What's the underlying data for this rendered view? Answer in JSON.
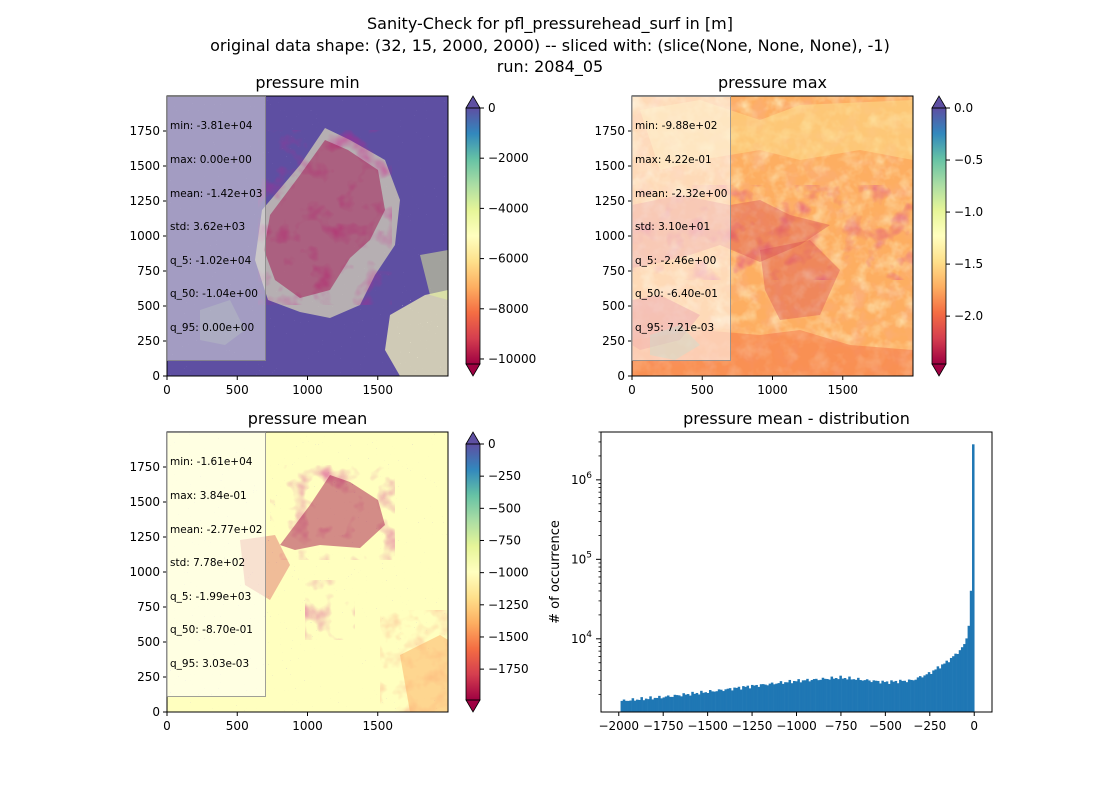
{
  "figure": {
    "title_lines": [
      "Sanity-Check for pfl_pressurehead_surf in [m]",
      "original data shape: (32, 15, 2000, 2000) -- sliced with: (slice(None, None, None), -1)",
      "run: 2084_05"
    ]
  },
  "chart_data": [
    {
      "type": "heatmap",
      "title": "pressure min",
      "xlim": [
        0,
        2000
      ],
      "ylim": [
        0,
        2000
      ],
      "xticks": [
        0,
        500,
        1000,
        1500
      ],
      "yticks": [
        0,
        250,
        500,
        750,
        1000,
        1250,
        1500,
        1750
      ],
      "colormap": "Spectral",
      "colorbar": {
        "ticks": [
          0,
          -2000,
          -4000,
          -6000,
          -8000,
          -10000
        ],
        "range": [
          -10200,
          0
        ],
        "extend": "both"
      },
      "stats": [
        "min: -3.81e+04",
        "max: 0.00e+00",
        "mean: -1.42e+03",
        "std: 3.62e+03",
        "q_5: -1.02e+04",
        "q_50: -1.04e+00",
        "q_95: 0.00e+00"
      ]
    },
    {
      "type": "heatmap",
      "title": "pressure max",
      "xlim": [
        0,
        2000
      ],
      "ylim": [
        0,
        2000
      ],
      "xticks": [
        0,
        500,
        1000,
        1500
      ],
      "yticks": [
        0,
        250,
        500,
        750,
        1000,
        1250,
        1500,
        1750
      ],
      "colormap": "Spectral",
      "colorbar": {
        "ticks": [
          0.0,
          -0.5,
          -1.0,
          -1.5,
          -2.0
        ],
        "tick_labels": [
          "0.0",
          "−0.5",
          "−1.0",
          "−1.5",
          "−2.0"
        ],
        "range": [
          -2.46,
          0.0
        ],
        "extend": "both"
      },
      "stats": [
        "min: -9.88e+02",
        "max: 4.22e-01",
        "mean: -2.32e+00",
        "std: 3.10e+01",
        "q_5: -2.46e+00",
        "q_50: -6.40e-01",
        "q_95: 7.21e-03"
      ]
    },
    {
      "type": "heatmap",
      "title": "pressure mean",
      "xlim": [
        0,
        2000
      ],
      "ylim": [
        0,
        2000
      ],
      "xticks": [
        0,
        500,
        1000,
        1500
      ],
      "yticks": [
        0,
        250,
        500,
        750,
        1000,
        1250,
        1500,
        1750
      ],
      "colormap": "Spectral",
      "colorbar": {
        "ticks": [
          0,
          -250,
          -500,
          -750,
          -1000,
          -1250,
          -1500,
          -1750
        ],
        "range": [
          -1990,
          0
        ],
        "extend": "both"
      },
      "stats": [
        "min: -1.61e+04",
        "max: 3.84e-01",
        "mean: -2.77e+02",
        "std: 7.78e+02",
        "q_5: -1.99e+03",
        "q_50: -8.70e-01",
        "q_95: 3.03e-03"
      ]
    },
    {
      "type": "bar",
      "title": "pressure mean - distribution",
      "ylabel": "# of occurrence",
      "xlabel": "",
      "yscale": "log",
      "xlim": [
        -2100,
        100
      ],
      "xticks": [
        -2000,
        -1750,
        -1500,
        -1250,
        -1000,
        -750,
        -500,
        -250,
        0
      ],
      "ylim": [
        1200,
        4000000
      ],
      "yticks": [
        10000,
        100000,
        1000000
      ],
      "bar_color": "#1f77b4",
      "bins": {
        "start": -1990,
        "end": 0,
        "count": 160
      },
      "anchors": [
        [
          -1990,
          1650
        ],
        [
          -1750,
          1850
        ],
        [
          -1500,
          2150
        ],
        [
          -1250,
          2550
        ],
        [
          -1000,
          2950
        ],
        [
          -750,
          3250
        ],
        [
          -500,
          2850
        ],
        [
          -350,
          3000
        ],
        [
          -250,
          3700
        ],
        [
          -150,
          5200
        ],
        [
          -100,
          6500
        ],
        [
          -60,
          8000
        ],
        [
          -40,
          11000
        ],
        [
          -25,
          18000
        ],
        [
          -15,
          60000
        ],
        [
          -8,
          150000
        ],
        [
          0,
          2800000
        ]
      ]
    }
  ]
}
